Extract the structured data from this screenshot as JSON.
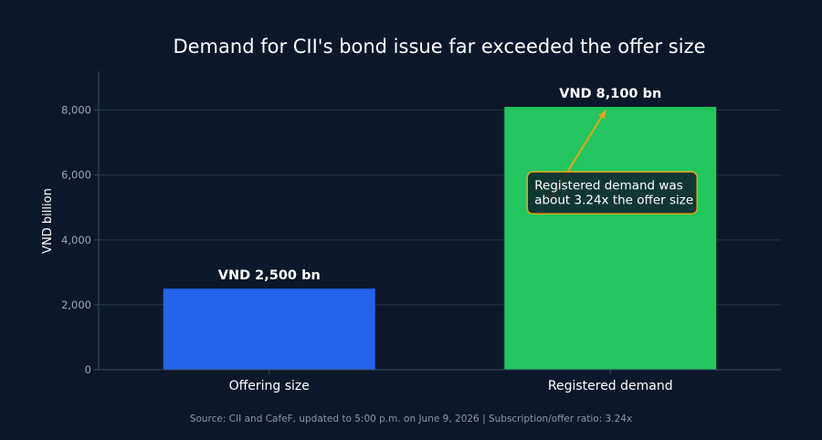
{
  "colors": {
    "background": "#0c1729",
    "grid": "#26364d",
    "axis": "#3b4b63",
    "tick_text": "#9aa6b8",
    "text": "#ffffff",
    "caption": "#8a96a8",
    "offering_bar": "#2563eb",
    "demand_bar": "#22c55e",
    "annotation": "#e6a21c",
    "annotation_box": "#0c1729"
  },
  "chart_data": {
    "type": "bar",
    "title": "Demand for CII's bond issue far exceeded the offer size",
    "ylabel": "VND billion",
    "xlabel": "",
    "categories": [
      "Offering size",
      "Registered demand"
    ],
    "values": [
      2500,
      8100
    ],
    "data_labels": [
      "VND 2,500 bn",
      "VND 8,100 bn"
    ],
    "ylim": [
      0,
      9200
    ],
    "yticks": [
      0,
      2000,
      4000,
      6000,
      8000
    ],
    "ytick_labels": [
      "0",
      "2,000",
      "4,000",
      "6,000",
      "8,000"
    ],
    "grid": true,
    "annotation": {
      "lines": [
        "Registered demand was",
        "about 3.24x the offer size"
      ],
      "arrow_to": {
        "category": "Registered demand",
        "value": 8000
      },
      "box_at": {
        "category": "Registered demand",
        "value": 5450
      }
    },
    "caption": "Source: CII and CafeF, updated to 5:00 p.m. on June 9, 2026 | Subscription/offer ratio: 3.24x"
  }
}
